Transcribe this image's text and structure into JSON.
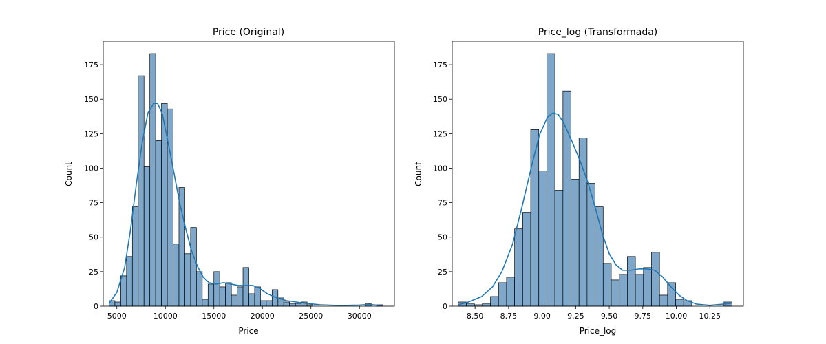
{
  "chart_data": [
    {
      "type": "bar",
      "title": "Price (Original)",
      "xlabel": "Price",
      "ylabel": "Count",
      "xlim": [
        3600,
        33600
      ],
      "ylim": [
        0,
        192
      ],
      "xticks": [
        5000,
        10000,
        15000,
        20000,
        25000,
        30000
      ],
      "yticks": [
        0,
        25,
        50,
        75,
        100,
        125,
        150,
        175
      ],
      "bins": [
        {
          "x0": 4200,
          "x1": 4800,
          "count": 4
        },
        {
          "x0": 4800,
          "x1": 5400,
          "count": 3
        },
        {
          "x0": 5400,
          "x1": 6000,
          "count": 22
        },
        {
          "x0": 6000,
          "x1": 6600,
          "count": 36
        },
        {
          "x0": 6600,
          "x1": 7200,
          "count": 72
        },
        {
          "x0": 7200,
          "x1": 7800,
          "count": 167
        },
        {
          "x0": 7800,
          "x1": 8400,
          "count": 101
        },
        {
          "x0": 8400,
          "x1": 9000,
          "count": 183
        },
        {
          "x0": 9000,
          "x1": 9600,
          "count": 120
        },
        {
          "x0": 9600,
          "x1": 10200,
          "count": 147
        },
        {
          "x0": 10200,
          "x1": 10800,
          "count": 143
        },
        {
          "x0": 10800,
          "x1": 11400,
          "count": 45
        },
        {
          "x0": 11400,
          "x1": 12000,
          "count": 86
        },
        {
          "x0": 12000,
          "x1": 12600,
          "count": 38
        },
        {
          "x0": 12600,
          "x1": 13200,
          "count": 57
        },
        {
          "x0": 13200,
          "x1": 13800,
          "count": 25
        },
        {
          "x0": 13800,
          "x1": 14400,
          "count": 5
        },
        {
          "x0": 14400,
          "x1": 15000,
          "count": 16
        },
        {
          "x0": 15000,
          "x1": 15600,
          "count": 25
        },
        {
          "x0": 15600,
          "x1": 16200,
          "count": 14
        },
        {
          "x0": 16200,
          "x1": 16800,
          "count": 17
        },
        {
          "x0": 16800,
          "x1": 17400,
          "count": 8
        },
        {
          "x0": 17400,
          "x1": 18000,
          "count": 14
        },
        {
          "x0": 18000,
          "x1": 18600,
          "count": 28
        },
        {
          "x0": 18600,
          "x1": 19200,
          "count": 9
        },
        {
          "x0": 19200,
          "x1": 19800,
          "count": 14
        },
        {
          "x0": 19800,
          "x1": 20400,
          "count": 4
        },
        {
          "x0": 20400,
          "x1": 21000,
          "count": 4
        },
        {
          "x0": 21000,
          "x1": 21600,
          "count": 12
        },
        {
          "x0": 21600,
          "x1": 22200,
          "count": 6
        },
        {
          "x0": 22200,
          "x1": 22800,
          "count": 3
        },
        {
          "x0": 22800,
          "x1": 23400,
          "count": 2
        },
        {
          "x0": 23400,
          "x1": 24000,
          "count": 2
        },
        {
          "x0": 24000,
          "x1": 24600,
          "count": 3
        },
        {
          "x0": 24600,
          "x1": 25200,
          "count": 1
        },
        {
          "x0": 30600,
          "x1": 31200,
          "count": 2
        },
        {
          "x0": 31800,
          "x1": 32400,
          "count": 1
        }
      ],
      "kde": {
        "x": [
          4200,
          5000,
          5800,
          6400,
          7000,
          7600,
          8200,
          8800,
          9200,
          9700,
          10300,
          10900,
          11500,
          12100,
          12700,
          13300,
          13900,
          14500,
          15200,
          16000,
          16800,
          17500,
          18300,
          19000,
          19700,
          20500,
          21500,
          22500,
          23500,
          24500,
          26000,
          28000,
          30000,
          31000,
          32400
        ],
        "y": [
          2,
          10,
          28,
          55,
          88,
          118,
          140,
          147,
          147,
          139,
          118,
          96,
          74,
          56,
          40,
          29,
          21,
          17,
          16,
          17,
          16,
          15,
          15,
          15,
          13,
          9,
          6,
          4,
          3,
          2,
          1,
          0.5,
          0.8,
          1.2,
          0.4
        ]
      },
      "bar_color": "#7fa7c9",
      "line_color": "#1f77b4"
    },
    {
      "type": "bar",
      "title": "Price_log (Transformada)",
      "xlabel": "Price_log",
      "ylabel": "Count",
      "xlim": [
        8.33,
        10.5
      ],
      "ylim": [
        0,
        192
      ],
      "xticks": [
        8.5,
        8.75,
        9.0,
        9.25,
        9.5,
        9.75,
        10.0,
        10.25
      ],
      "xtick_labels": [
        "8.50",
        "8.75",
        "9.00",
        "9.25",
        "9.50",
        "9.75",
        "10.00",
        "10.25"
      ],
      "yticks": [
        0,
        25,
        50,
        75,
        100,
        125,
        150,
        175
      ],
      "bins": [
        {
          "x0": 8.375,
          "x1": 8.435,
          "count": 3
        },
        {
          "x0": 8.435,
          "x1": 8.495,
          "count": 2
        },
        {
          "x0": 8.495,
          "x1": 8.555,
          "count": 1
        },
        {
          "x0": 8.555,
          "x1": 8.615,
          "count": 2
        },
        {
          "x0": 8.615,
          "x1": 8.675,
          "count": 7
        },
        {
          "x0": 8.675,
          "x1": 8.735,
          "count": 17
        },
        {
          "x0": 8.735,
          "x1": 8.795,
          "count": 21
        },
        {
          "x0": 8.795,
          "x1": 8.855,
          "count": 56
        },
        {
          "x0": 8.855,
          "x1": 8.915,
          "count": 68
        },
        {
          "x0": 8.915,
          "x1": 8.975,
          "count": 128
        },
        {
          "x0": 8.975,
          "x1": 9.035,
          "count": 98
        },
        {
          "x0": 9.035,
          "x1": 9.095,
          "count": 183
        },
        {
          "x0": 9.095,
          "x1": 9.155,
          "count": 84
        },
        {
          "x0": 9.155,
          "x1": 9.215,
          "count": 156
        },
        {
          "x0": 9.215,
          "x1": 9.275,
          "count": 92
        },
        {
          "x0": 9.275,
          "x1": 9.335,
          "count": 122
        },
        {
          "x0": 9.335,
          "x1": 9.395,
          "count": 89
        },
        {
          "x0": 9.395,
          "x1": 9.455,
          "count": 72
        },
        {
          "x0": 9.455,
          "x1": 9.515,
          "count": 31
        },
        {
          "x0": 9.515,
          "x1": 9.575,
          "count": 19
        },
        {
          "x0": 9.575,
          "x1": 9.635,
          "count": 23
        },
        {
          "x0": 9.635,
          "x1": 9.695,
          "count": 36
        },
        {
          "x0": 9.695,
          "x1": 9.755,
          "count": 23
        },
        {
          "x0": 9.755,
          "x1": 9.815,
          "count": 28
        },
        {
          "x0": 9.815,
          "x1": 9.875,
          "count": 39
        },
        {
          "x0": 9.875,
          "x1": 9.935,
          "count": 8
        },
        {
          "x0": 9.935,
          "x1": 9.995,
          "count": 17
        },
        {
          "x0": 9.995,
          "x1": 10.055,
          "count": 5
        },
        {
          "x0": 10.055,
          "x1": 10.115,
          "count": 4
        },
        {
          "x0": 10.355,
          "x1": 10.415,
          "count": 3
        }
      ],
      "kde": {
        "x": [
          8.375,
          8.45,
          8.55,
          8.63,
          8.7,
          8.78,
          8.85,
          8.92,
          8.98,
          9.04,
          9.08,
          9.12,
          9.16,
          9.22,
          9.28,
          9.34,
          9.4,
          9.45,
          9.5,
          9.55,
          9.6,
          9.66,
          9.72,
          9.78,
          9.84,
          9.9,
          9.96,
          10.02,
          10.08,
          10.15,
          10.25,
          10.35,
          10.41
        ],
        "y": [
          1,
          3,
          7,
          14,
          25,
          45,
          72,
          101,
          124,
          137,
          140,
          139,
          133,
          120,
          106,
          90,
          70,
          52,
          38,
          30,
          26,
          26,
          27,
          27,
          26,
          21,
          14,
          8,
          4,
          1.5,
          0.6,
          1.5,
          2
        ]
      },
      "bar_color": "#7fa7c9",
      "line_color": "#1f77b4"
    }
  ]
}
